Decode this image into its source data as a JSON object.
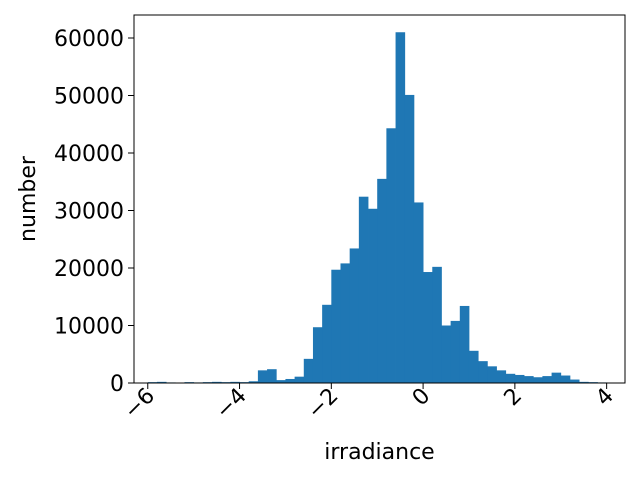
{
  "chart_data": {
    "type": "bar",
    "xlabel": "irradiance",
    "ylabel": "number",
    "xlim": [
      -6.3,
      4.4
    ],
    "ylim": [
      0,
      64000
    ],
    "x_ticks": [
      -6,
      -4,
      -2,
      0,
      2,
      4
    ],
    "x_tick_labels": [
      "−6",
      "−4",
      "−2",
      "0",
      "2",
      "4"
    ],
    "x_tick_rotation_deg": 45,
    "y_ticks": [
      0,
      10000,
      20000,
      30000,
      40000,
      50000,
      60000
    ],
    "y_tick_labels": [
      "0",
      "10000",
      "20000",
      "30000",
      "40000",
      "50000",
      "60000"
    ],
    "grid": false,
    "bar_color": "#1f77b4",
    "bin_edges": [
      -6.0,
      -5.8,
      -5.6,
      -5.4,
      -5.2,
      -5.0,
      -4.8,
      -4.6,
      -4.4,
      -4.2,
      -4.0,
      -3.8,
      -3.6,
      -3.4,
      -3.2,
      -3.0,
      -2.8,
      -2.6,
      -2.4,
      -2.2,
      -2.0,
      -1.8,
      -1.6,
      -1.4,
      -1.2,
      -1.0,
      -0.8,
      -0.6,
      -0.4,
      -0.2,
      0.0,
      0.2,
      0.4,
      0.6,
      0.8,
      1.0,
      1.2,
      1.4,
      1.6,
      1.8,
      2.0,
      2.2,
      2.4,
      2.6,
      2.8,
      3.0,
      3.2,
      3.4,
      3.6,
      3.8,
      4.0
    ],
    "counts": [
      150,
      200,
      100,
      80,
      150,
      100,
      150,
      200,
      150,
      200,
      150,
      300,
      2200,
      2400,
      500,
      700,
      1100,
      4200,
      9700,
      13600,
      19700,
      20800,
      23400,
      32400,
      30300,
      35500,
      44300,
      61000,
      50100,
      31400,
      19300,
      20200,
      10000,
      10800,
      13400,
      5600,
      3800,
      2900,
      2200,
      1600,
      1400,
      1200,
      1000,
      1200,
      1800,
      1300,
      600,
      200,
      150,
      100
    ]
  }
}
